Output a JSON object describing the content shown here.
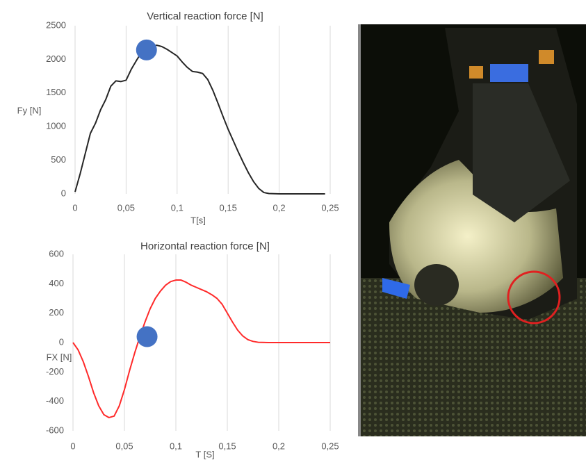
{
  "chart_data": [
    {
      "type": "line",
      "title": "Vertical reaction force [N]",
      "x_label": "T[s]",
      "y_label": "Fy [N]",
      "x": [
        0,
        0.005,
        0.01,
        0.015,
        0.02,
        0.025,
        0.03,
        0.035,
        0.04,
        0.045,
        0.05,
        0.055,
        0.06,
        0.065,
        0.07,
        0.075,
        0.08,
        0.085,
        0.09,
        0.095,
        0.1,
        0.105,
        0.11,
        0.115,
        0.12,
        0.125,
        0.13,
        0.135,
        0.14,
        0.145,
        0.15,
        0.155,
        0.16,
        0.165,
        0.17,
        0.175,
        0.18,
        0.185,
        0.19,
        0.2,
        0.22,
        0.245
      ],
      "series": [
        {
          "color": "#262626",
          "values": [
            30,
            300,
            600,
            900,
            1050,
            1250,
            1400,
            1600,
            1680,
            1670,
            1690,
            1850,
            1980,
            2100,
            2150,
            2190,
            2210,
            2190,
            2150,
            2100,
            2050,
            1960,
            1880,
            1820,
            1810,
            1790,
            1700,
            1540,
            1350,
            1150,
            960,
            790,
            620,
            460,
            310,
            180,
            80,
            20,
            5,
            0,
            0,
            0
          ]
        }
      ],
      "marker": {
        "x": 0.07,
        "y": 2140,
        "color": "#4472c4"
      },
      "xlim": [
        0,
        0.25
      ],
      "xticks": [
        0,
        {
          "value": 0.05,
          "label": "0,05"
        },
        {
          "value": 0.1,
          "label": "0,1"
        },
        {
          "value": 0.15,
          "label": "0,15"
        },
        {
          "value": 0.2,
          "label": "0,2"
        },
        {
          "value": 0.25,
          "label": "0,25"
        }
      ],
      "ylim": [
        0,
        2500
      ],
      "yticks": [
        0,
        500,
        1000,
        1500,
        2000,
        2500
      ],
      "grid": true
    },
    {
      "type": "line",
      "title": "Horizontal reaction force [N]",
      "x_label": "T [S]",
      "y_label": "FX [N]",
      "x": [
        0,
        0.005,
        0.01,
        0.015,
        0.02,
        0.025,
        0.03,
        0.035,
        0.04,
        0.045,
        0.05,
        0.055,
        0.06,
        0.065,
        0.07,
        0.075,
        0.08,
        0.085,
        0.09,
        0.095,
        0.1,
        0.105,
        0.11,
        0.115,
        0.12,
        0.125,
        0.13,
        0.135,
        0.14,
        0.145,
        0.15,
        0.155,
        0.16,
        0.165,
        0.17,
        0.175,
        0.18,
        0.19,
        0.25
      ],
      "series": [
        {
          "color": "#ff2a2a",
          "values": [
            0,
            -50,
            -130,
            -230,
            -340,
            -430,
            -490,
            -510,
            -500,
            -430,
            -320,
            -190,
            -70,
            40,
            140,
            230,
            300,
            350,
            390,
            415,
            425,
            425,
            410,
            390,
            375,
            360,
            345,
            325,
            300,
            260,
            200,
            140,
            85,
            45,
            20,
            8,
            2,
            0,
            0
          ]
        }
      ],
      "marker": {
        "x": 0.072,
        "y": 40,
        "color": "#4472c4"
      },
      "xlim": [
        0,
        0.25
      ],
      "xticks": [
        0,
        {
          "value": 0.05,
          "label": "0,05"
        },
        {
          "value": 0.1,
          "label": "0,1"
        },
        {
          "value": 0.15,
          "label": "0,15"
        },
        {
          "value": 0.2,
          "label": "0,2"
        },
        {
          "value": 0.25,
          "label": "0,25"
        }
      ],
      "ylim": [
        -600,
        600
      ],
      "yticks": [
        -600,
        -400,
        -200,
        0,
        200,
        400,
        600
      ],
      "grid": true
    }
  ]
}
